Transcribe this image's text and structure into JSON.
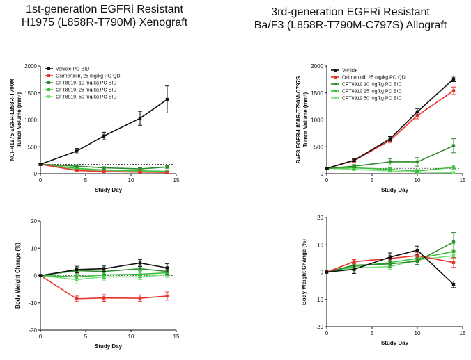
{
  "titles": {
    "left": [
      "1st-generation EGFRi Resistant",
      "H1975 (L858R-T790M) Xenograft"
    ],
    "right": [
      "3rd-generation EGFRi Resistant",
      "Ba/F3 (L858R-T790M-C797S) Allograft"
    ]
  },
  "colors": {
    "vehicle": "#111111",
    "osimertinib": "#e8332a",
    "cft10": "#2e8b2e",
    "cft25": "#3cc13c",
    "cft50": "#7ee07e"
  },
  "chart_data": [
    {
      "id": "tl",
      "type": "line",
      "xlabel": "Study Day",
      "ylabel": [
        "NCI-H1975 EGFR-L858R-T790M",
        "Tumor Volume (mm³)"
      ],
      "xlim": [
        0,
        15
      ],
      "ylim": [
        0,
        2000
      ],
      "xticks": [
        0,
        5,
        10,
        15
      ],
      "yticks": [
        0,
        500,
        1000,
        1500,
        2000
      ],
      "ref_line": 175,
      "legend": "top-left",
      "series": [
        {
          "name": "Vehicle PO BID",
          "color_key": "vehicle",
          "x": [
            0,
            4,
            7,
            11,
            14
          ],
          "y": [
            175,
            420,
            700,
            1030,
            1380
          ],
          "err": [
            20,
            50,
            70,
            130,
            250
          ]
        },
        {
          "name": "Osimertinib, 25 mg/kg PO QD",
          "color_key": "osimertinib",
          "x": [
            0,
            4,
            7,
            11,
            14
          ],
          "y": [
            175,
            60,
            40,
            30,
            25
          ],
          "err": [
            15,
            20,
            15,
            10,
            10
          ]
        },
        {
          "name": "CFT8919, 10 mg/kg PO BID",
          "color_key": "cft10",
          "x": [
            0,
            4,
            7,
            11,
            14
          ],
          "y": [
            175,
            140,
            110,
            90,
            125
          ],
          "err": [
            15,
            25,
            20,
            20,
            25
          ]
        },
        {
          "name": "CFT8919, 25 mg/kg PO BID",
          "color_key": "cft25",
          "x": [
            0,
            4,
            7,
            11,
            14
          ],
          "y": [
            175,
            100,
            70,
            55,
            45
          ],
          "err": [
            15,
            20,
            15,
            15,
            10
          ]
        },
        {
          "name": "CFT8919, 50 mg/kg PO BID",
          "color_key": "cft50",
          "x": [
            0,
            4,
            7,
            11,
            14
          ],
          "y": [
            175,
            80,
            55,
            40,
            30
          ],
          "err": [
            15,
            15,
            12,
            10,
            10
          ]
        }
      ]
    },
    {
      "id": "tr",
      "type": "line",
      "xlabel": "Study Day",
      "ylabel": [
        "BaF3 EGFR-L858R-T790M-C797S",
        "Tumor Volume (mm³)"
      ],
      "xlim": [
        0,
        15
      ],
      "ylim": [
        0,
        2000
      ],
      "xticks": [
        0,
        5,
        10,
        15
      ],
      "yticks": [
        0,
        500,
        1000,
        1500,
        2000
      ],
      "ref_line": 100,
      "legend": "top-left",
      "series": [
        {
          "name": "Vehicle",
          "color_key": "vehicle",
          "x": [
            0,
            3,
            7,
            10,
            14
          ],
          "y": [
            100,
            250,
            650,
            1150,
            1760
          ],
          "err": [
            15,
            25,
            40,
            60,
            50
          ]
        },
        {
          "name": "Osimertinib 25 mg/kg PO QD",
          "color_key": "osimertinib",
          "x": [
            0,
            3,
            7,
            10,
            14
          ],
          "y": [
            100,
            240,
            620,
            1080,
            1540
          ],
          "err": [
            15,
            25,
            40,
            60,
            70
          ]
        },
        {
          "name": "CFT8919 10 mg/kg PO BID",
          "color_key": "cft10",
          "x": [
            0,
            3,
            7,
            10,
            14
          ],
          "y": [
            100,
            140,
            220,
            220,
            520
          ],
          "err": [
            20,
            30,
            60,
            80,
            130
          ]
        },
        {
          "name": "CFT8919 25 mg/kg PO BID",
          "color_key": "cft25",
          "x": [
            0,
            3,
            7,
            10,
            14
          ],
          "y": [
            100,
            110,
            80,
            50,
            120
          ],
          "err": [
            15,
            25,
            30,
            30,
            40
          ]
        },
        {
          "name": "CFT8919 50 mg/kg PO BID",
          "color_key": "cft50",
          "x": [
            0,
            3,
            7,
            10,
            14
          ],
          "y": [
            100,
            80,
            50,
            30,
            20
          ],
          "err": [
            15,
            20,
            20,
            15,
            10
          ]
        }
      ]
    },
    {
      "id": "bl",
      "type": "line",
      "xlabel": "Study Day",
      "ylabel": [
        "Body Weight Change (%)"
      ],
      "xlim": [
        0,
        15
      ],
      "ylim": [
        -20,
        20
      ],
      "xticks": [
        0,
        5,
        10,
        15
      ],
      "yticks": [
        -20,
        -10,
        0,
        10,
        20
      ],
      "ref_line": 0,
      "series": [
        {
          "color_key": "vehicle",
          "x": [
            0,
            4,
            7,
            11,
            14
          ],
          "y": [
            0,
            2.2,
            2.5,
            4.6,
            2.8
          ],
          "err": [
            0,
            1.2,
            1.0,
            1.3,
            1.5
          ]
        },
        {
          "color_key": "osimertinib",
          "x": [
            0,
            4,
            7,
            11,
            14
          ],
          "y": [
            0,
            -8.5,
            -8.2,
            -8.3,
            -7.5
          ],
          "err": [
            0,
            1.0,
            1.2,
            1.2,
            1.5
          ]
        },
        {
          "color_key": "cft10",
          "x": [
            0,
            4,
            7,
            11,
            14
          ],
          "y": [
            0,
            1.8,
            1.5,
            2.5,
            1.5
          ],
          "err": [
            0,
            1.2,
            1.0,
            1.2,
            1.0
          ]
        },
        {
          "color_key": "cft25",
          "x": [
            0,
            4,
            7,
            11,
            14
          ],
          "y": [
            0,
            -0.5,
            0.2,
            0.5,
            1.0
          ],
          "err": [
            0,
            1.5,
            1.2,
            1.2,
            1.0
          ]
        },
        {
          "color_key": "cft50",
          "x": [
            0,
            4,
            7,
            11,
            14
          ],
          "y": [
            0,
            -1.5,
            -0.5,
            -0.5,
            0.3
          ],
          "err": [
            0,
            1.5,
            1.2,
            1.0,
            1.0
          ]
        }
      ]
    },
    {
      "id": "br",
      "type": "line",
      "xlabel": "Study Day",
      "ylabel": [
        "Body Weight Change (%)"
      ],
      "xlim": [
        0,
        15
      ],
      "ylim": [
        -20,
        20
      ],
      "xticks": [
        0,
        5,
        10,
        15
      ],
      "yticks": [
        -20,
        -10,
        0,
        10,
        20
      ],
      "ref_line": 0,
      "series": [
        {
          "color_key": "vehicle",
          "x": [
            0,
            3,
            7,
            10,
            14
          ],
          "y": [
            0,
            1.0,
            5.5,
            8.0,
            -4.5
          ],
          "err": [
            0,
            1.5,
            1.5,
            1.5,
            1.2
          ]
        },
        {
          "color_key": "osimertinib",
          "x": [
            0,
            3,
            7,
            10,
            14
          ],
          "y": [
            0,
            3.8,
            5.0,
            6.0,
            3.5
          ],
          "err": [
            0,
            0.8,
            1.0,
            1.2,
            1.8
          ]
        },
        {
          "color_key": "cft10",
          "x": [
            0,
            3,
            7,
            10,
            14
          ],
          "y": [
            0,
            2.5,
            3.0,
            4.0,
            11.0
          ],
          "err": [
            0,
            1.0,
            1.2,
            1.2,
            3.5
          ]
        },
        {
          "color_key": "cft25",
          "x": [
            0,
            3,
            7,
            10,
            14
          ],
          "y": [
            0,
            2.0,
            3.5,
            5.0,
            7.5
          ],
          "err": [
            0,
            1.0,
            1.2,
            1.2,
            2.5
          ]
        },
        {
          "color_key": "cft50",
          "x": [
            0,
            3,
            7,
            10,
            14
          ],
          "y": [
            0,
            1.5,
            2.0,
            4.5,
            6.0
          ],
          "err": [
            0,
            1.0,
            1.0,
            1.2,
            2.0
          ]
        }
      ]
    }
  ]
}
